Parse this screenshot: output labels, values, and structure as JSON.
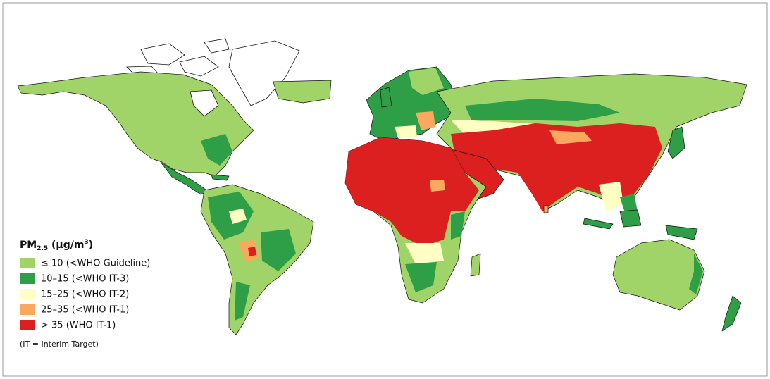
{
  "legend": {
    "title": {
      "main": "PM",
      "subscript": "2.5",
      "unit": " (μg/m",
      "superscript": "3",
      "close": ")"
    },
    "items": [
      {
        "label": "≤ 10 (<WHO Guideline)",
        "color": "#a0d468"
      },
      {
        "label": "10–15 (<WHO IT-3)",
        "color": "#2e9e47"
      },
      {
        "label": "15–25 (<WHO IT-2)",
        "color": "#ffffc4"
      },
      {
        "label": "25–35 (<WHO IT-1)",
        "color": "#f9a85e"
      },
      {
        "label": "> 35 (WHO IT-1)",
        "color": "#dc1f1f"
      }
    ],
    "note": "(IT = Interim Target)"
  }
}
